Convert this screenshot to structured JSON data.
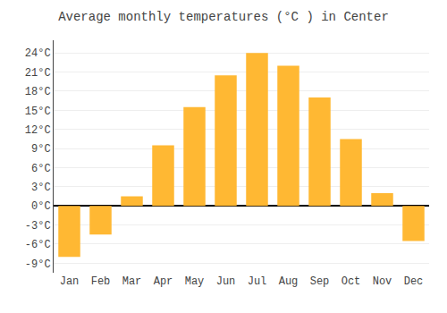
{
  "chart_data": {
    "type": "bar",
    "title": "Average monthly temperatures (°C ) in Center",
    "categories": [
      "Jan",
      "Feb",
      "Mar",
      "Apr",
      "May",
      "Jun",
      "Jul",
      "Aug",
      "Sep",
      "Oct",
      "Nov",
      "Dec"
    ],
    "values": [
      -8.0,
      -4.5,
      1.5,
      9.5,
      15.5,
      20.5,
      24.0,
      22.0,
      17.0,
      10.5,
      2.0,
      -5.5
    ],
    "color": "#FFB833",
    "ylim": [
      -10.5,
      26.0
    ],
    "yticks": [
      {
        "value": -9,
        "label": "-9°C"
      },
      {
        "value": -6,
        "label": "-6°C"
      },
      {
        "value": -3,
        "label": "-3°C"
      },
      {
        "value": 0,
        "label": "0°C"
      },
      {
        "value": 3,
        "label": "3°C"
      },
      {
        "value": 6,
        "label": "6°C"
      },
      {
        "value": 9,
        "label": "9°C"
      },
      {
        "value": 12,
        "label": "12°C"
      },
      {
        "value": 15,
        "label": "15°C"
      },
      {
        "value": 18,
        "label": "18°C"
      },
      {
        "value": 21,
        "label": "21°C"
      },
      {
        "value": 24,
        "label": "24°C"
      }
    ],
    "grid": true
  }
}
